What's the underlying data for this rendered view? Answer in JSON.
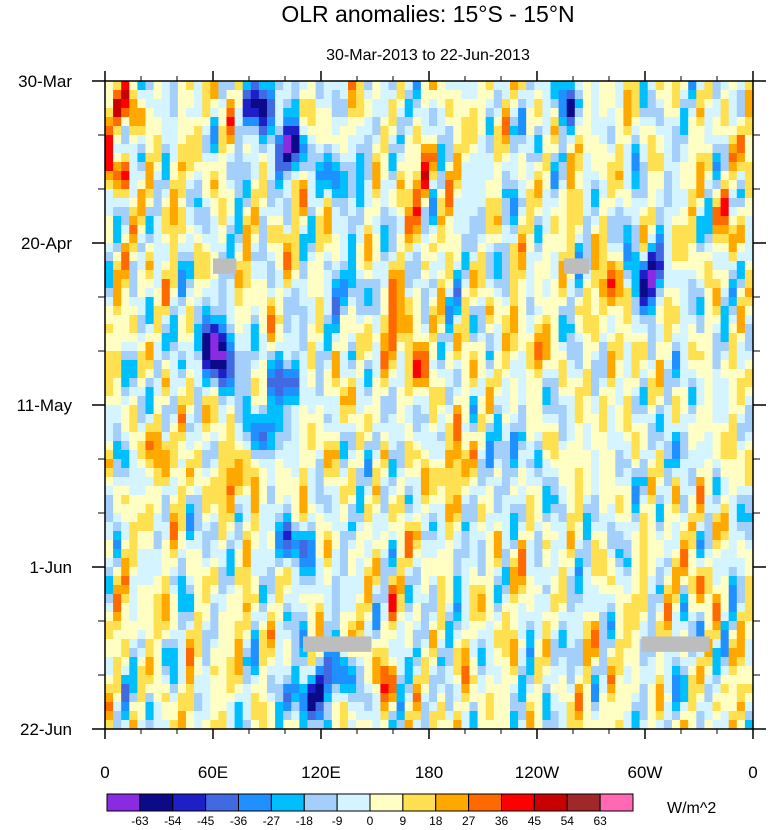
{
  "chart_data": {
    "type": "heatmap",
    "title": "OLR anomalies: 15°S - 15°N",
    "subtitle": "30-Mar-2013 to 22-Jun-2013",
    "xlabel": "",
    "ylabel": "",
    "x_ticks": [
      "0",
      "60E",
      "120E",
      "180",
      "120W",
      "60W",
      "0"
    ],
    "x_tick_values": [
      0,
      60,
      120,
      180,
      240,
      300,
      360
    ],
    "y_ticks": [
      "30-Mar",
      "20-Apr",
      "11-May",
      "1-Jun",
      "22-Jun"
    ],
    "y_tick_days": [
      0,
      21,
      42,
      63,
      84
    ],
    "x_range_degrees_east": [
      0,
      360
    ],
    "time_range_days": [
      0,
      84
    ],
    "colorbar": {
      "levels": [
        -63,
        -54,
        -45,
        -36,
        -27,
        -18,
        -9,
        0,
        9,
        18,
        27,
        36,
        45,
        54,
        63
      ],
      "colors": [
        "#8a2be2",
        "#0b0b8a",
        "#1f1fc8",
        "#4169e1",
        "#1e90ff",
        "#00bfff",
        "#a4cffa",
        "#d4f5ff",
        "#ffffc4",
        "#ffe050",
        "#ffa800",
        "#ff6a00",
        "#ff0000",
        "#c80000",
        "#a02828",
        "#ff69b4"
      ],
      "units": "W/m^2"
    },
    "anomaly_features": [
      {
        "lon": 87,
        "day": 3,
        "value": -58
      },
      {
        "lon": 103,
        "day": 9,
        "value": -60
      },
      {
        "lon": 130,
        "day": 12,
        "value": -40
      },
      {
        "lon": 60,
        "day": 34,
        "value": -62
      },
      {
        "lon": 67,
        "day": 37,
        "value": -50
      },
      {
        "lon": 100,
        "day": 39,
        "value": -36
      },
      {
        "lon": 90,
        "day": 45,
        "value": -30
      },
      {
        "lon": 103,
        "day": 60,
        "value": -48
      },
      {
        "lon": 113,
        "day": 80,
        "value": -58
      },
      {
        "lon": 130,
        "day": 77,
        "value": -45
      },
      {
        "lon": 136,
        "day": 28,
        "value": -30
      },
      {
        "lon": 298,
        "day": 27,
        "value": -50
      },
      {
        "lon": 304,
        "day": 24,
        "value": -36
      },
      {
        "lon": 72,
        "day": 52,
        "value": 38
      },
      {
        "lon": 174,
        "day": 37,
        "value": 33
      },
      {
        "lon": 172,
        "day": 13,
        "value": 30
      },
      {
        "lon": 162,
        "day": 32,
        "value": 28
      },
      {
        "lon": 282,
        "day": 27,
        "value": 48
      },
      {
        "lon": 220,
        "day": 48,
        "value": -27
      },
      {
        "lon": 258,
        "day": 3,
        "value": -30
      },
      {
        "lon": 10,
        "day": 4,
        "value": 40
      },
      {
        "lon": 5,
        "day": 12,
        "value": 35
      },
      {
        "lon": 195,
        "day": 50,
        "value": 25
      },
      {
        "lon": 240,
        "day": 35,
        "value": 22
      },
      {
        "lon": 330,
        "day": 65,
        "value": 20
      },
      {
        "lon": 30,
        "day": 48,
        "value": 22
      },
      {
        "lon": 155,
        "day": 78,
        "value": 20
      },
      {
        "lon": 25,
        "day": 70,
        "value": 18
      },
      {
        "lon": 350,
        "day": 20,
        "value": 22
      },
      {
        "lon": 245,
        "day": 55,
        "value": -18
      },
      {
        "lon": 320,
        "day": 48,
        "value": -15
      }
    ],
    "missing_data": [
      {
        "lon": [
          60,
          73
        ],
        "day": [
          23,
          25
        ]
      },
      {
        "lon": [
          255,
          269
        ],
        "day": [
          23,
          25
        ]
      },
      {
        "lon": [
          110,
          148
        ],
        "day": [
          72,
          74
        ]
      },
      {
        "lon": [
          298,
          336
        ],
        "day": [
          72,
          74
        ]
      }
    ]
  }
}
